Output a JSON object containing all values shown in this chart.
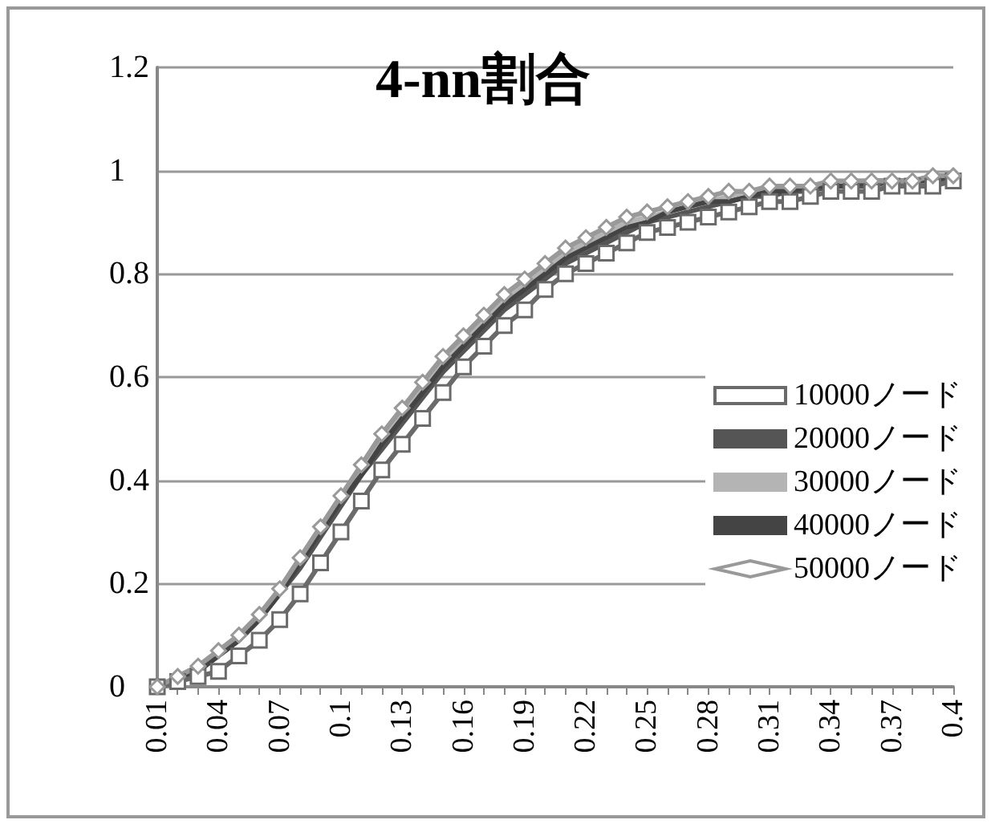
{
  "chart_data": {
    "type": "line",
    "title": "4-nn割合",
    "categories": [
      "0.01",
      null,
      null,
      "0.04",
      null,
      null,
      "0.07",
      null,
      null,
      "0.1",
      null,
      null,
      "0.13",
      null,
      null,
      "0.16",
      null,
      null,
      "0.19",
      null,
      null,
      "0.22",
      null,
      null,
      "0.25",
      null,
      null,
      "0.28",
      null,
      null,
      "0.31",
      null,
      null,
      "0.34",
      null,
      null,
      "0.37",
      null,
      null,
      "0.4"
    ],
    "series": [
      {
        "name": "10000ノード",
        "color": "#6a6a6a",
        "marker": "square",
        "values": [
          0,
          0.01,
          0.02,
          0.03,
          0.06,
          0.09,
          0.13,
          0.18,
          0.24,
          0.3,
          0.36,
          0.42,
          0.47,
          0.52,
          0.57,
          0.62,
          0.66,
          0.7,
          0.73,
          0.77,
          0.8,
          0.82,
          0.84,
          0.86,
          0.88,
          0.89,
          0.9,
          0.91,
          0.92,
          0.93,
          0.94,
          0.94,
          0.95,
          0.96,
          0.96,
          0.96,
          0.97,
          0.97,
          0.97,
          0.98
        ]
      },
      {
        "name": "20000ノード",
        "color": "#555555",
        "marker": "none",
        "values": [
          0,
          0.01,
          0.03,
          0.06,
          0.09,
          0.13,
          0.18,
          0.23,
          0.29,
          0.35,
          0.41,
          0.46,
          0.51,
          0.56,
          0.61,
          0.65,
          0.69,
          0.73,
          0.76,
          0.79,
          0.82,
          0.84,
          0.86,
          0.88,
          0.9,
          0.91,
          0.92,
          0.93,
          0.94,
          0.95,
          0.95,
          0.96,
          0.96,
          0.97,
          0.97,
          0.97,
          0.98,
          0.98,
          0.98,
          0.98
        ]
      },
      {
        "name": "30000ノード",
        "color": "#b4b4b4",
        "marker": "none",
        "values": [
          0,
          0.02,
          0.04,
          0.07,
          0.1,
          0.14,
          0.19,
          0.25,
          0.31,
          0.37,
          0.42,
          0.48,
          0.53,
          0.58,
          0.63,
          0.67,
          0.71,
          0.75,
          0.78,
          0.81,
          0.84,
          0.86,
          0.88,
          0.9,
          0.91,
          0.92,
          0.93,
          0.94,
          0.95,
          0.96,
          0.96,
          0.97,
          0.97,
          0.97,
          0.98,
          0.98,
          0.98,
          0.98,
          0.99,
          0.99
        ]
      },
      {
        "name": "40000ノード",
        "color": "#444444",
        "marker": "none",
        "values": [
          0,
          0.01,
          0.03,
          0.06,
          0.09,
          0.13,
          0.18,
          0.24,
          0.3,
          0.36,
          0.41,
          0.47,
          0.52,
          0.57,
          0.62,
          0.66,
          0.7,
          0.74,
          0.77,
          0.8,
          0.83,
          0.85,
          0.87,
          0.89,
          0.9,
          0.92,
          0.93,
          0.94,
          0.94,
          0.95,
          0.96,
          0.96,
          0.97,
          0.97,
          0.97,
          0.98,
          0.98,
          0.98,
          0.98,
          0.99
        ]
      },
      {
        "name": "50000ノード",
        "color": "#999999",
        "marker": "diamond",
        "values": [
          0,
          0.02,
          0.04,
          0.07,
          0.1,
          0.14,
          0.19,
          0.25,
          0.31,
          0.37,
          0.43,
          0.49,
          0.54,
          0.59,
          0.64,
          0.68,
          0.72,
          0.76,
          0.79,
          0.82,
          0.85,
          0.87,
          0.89,
          0.91,
          0.92,
          0.93,
          0.94,
          0.95,
          0.96,
          0.96,
          0.97,
          0.97,
          0.97,
          0.98,
          0.98,
          0.98,
          0.98,
          0.98,
          0.99,
          0.99
        ]
      }
    ],
    "ylim": [
      0,
      1.2
    ],
    "yticks": [
      0,
      0.2,
      0.4,
      0.6,
      0.8,
      1,
      1.2
    ],
    "grid": "y",
    "legend": "right",
    "line_style": "solid"
  }
}
